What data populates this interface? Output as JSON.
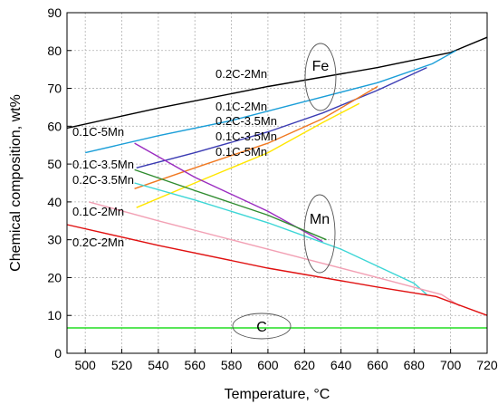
{
  "chart_data": {
    "type": "line",
    "xlabel": "Temperature, °C",
    "ylabel": "Chemical composition, wt%",
    "xlim": [
      490,
      720
    ],
    "ylim": [
      0,
      90
    ],
    "x_ticks": [
      500,
      520,
      540,
      560,
      580,
      600,
      620,
      640,
      660,
      680,
      700,
      720
    ],
    "y_ticks": [
      0,
      10,
      20,
      30,
      40,
      50,
      60,
      70,
      80,
      90
    ],
    "grid": true,
    "series": [
      {
        "name": "0.2C-2Mn",
        "group": "Fe",
        "color": "#000000",
        "x": [
          490,
          540,
          600,
          660,
          700,
          720
        ],
        "y": [
          59.5,
          64.8,
          70.5,
          75.5,
          79.5,
          83.5
        ]
      },
      {
        "name": "0.1C-2Mn",
        "group": "Fe",
        "color": "#1a9ed8",
        "x": [
          500,
          540,
          580,
          620,
          660,
          690,
          703
        ],
        "y": [
          53.0,
          57.5,
          61.5,
          66.5,
          71.5,
          76.5,
          80.0
        ]
      },
      {
        "name": "0.2C-3.5Mn",
        "group": "Fe",
        "color": "#3b3bb3",
        "x": [
          528,
          560,
          600,
          630,
          660,
          687
        ],
        "y": [
          49.0,
          53.0,
          58.5,
          63.5,
          69.5,
          75.5
        ]
      },
      {
        "name": "0.1C-3.5Mn",
        "group": "Fe",
        "color": "#f07820",
        "x": [
          527,
          560,
          600,
          630,
          660
        ],
        "y": [
          43.5,
          49.0,
          55.5,
          62.0,
          70.5
        ]
      },
      {
        "name": "0.1C-5Mn",
        "group": "Fe",
        "color": "#ffe600",
        "x": [
          528,
          560,
          600,
          630,
          650
        ],
        "y": [
          38.5,
          45.0,
          53.0,
          61.0,
          66.0
        ]
      },
      {
        "name": "0.1C-5Mn",
        "group": "Mn",
        "color": "#9a2bc0",
        "x": [
          527,
          560,
          600,
          630
        ],
        "y": [
          55.5,
          46.5,
          37.5,
          29.5
        ]
      },
      {
        "name": "0.1C-3.5Mn",
        "group": "Mn",
        "color": "#2e8b2e",
        "x": [
          527,
          560,
          600,
          632
        ],
        "y": [
          48.5,
          43.0,
          36.5,
          30.0
        ]
      },
      {
        "name": "0.2C-3.5Mn",
        "group": "Mn",
        "color": "#3cd6d6",
        "x": [
          527,
          560,
          600,
          640,
          680,
          687
        ],
        "y": [
          45.0,
          40.5,
          34.5,
          27.5,
          18.5,
          15.5
        ]
      },
      {
        "name": "0.1C-2Mn",
        "group": "Mn",
        "color": "#f2a0b4",
        "x": [
          502,
          540,
          580,
          620,
          660,
          695,
          705
        ],
        "y": [
          40.0,
          35.0,
          30.0,
          25.0,
          20.0,
          15.5,
          12.5
        ]
      },
      {
        "name": "0.2C-2Mn",
        "group": "Mn",
        "color": "#e01010",
        "x": [
          490,
          540,
          600,
          660,
          692,
          720
        ],
        "y": [
          34.0,
          28.5,
          22.5,
          17.5,
          15.0,
          10.0
        ]
      },
      {
        "name": "C",
        "group": "C",
        "color": "#22dd22",
        "x": [
          490,
          720
        ],
        "y": [
          6.7,
          6.7
        ]
      }
    ],
    "annotations": {
      "fe_label": "Fe",
      "mn_label": "Mn",
      "c_label": "C",
      "fe_0_2c_2mn": "0.2C-2Mn",
      "fe_0_1c_2mn": "0.1C-2Mn",
      "fe_0_2c_3_5mn": "0.2C-3.5Mn",
      "fe_0_1c_3_5mn": "0.1C-3.5Mn",
      "fe_0_1c_5mn": "0.1C-5Mn",
      "mn_0_1c_5mn": "0.1C-5Mn",
      "mn_0_1c_3_5mn": "0.1C-3.5Mn",
      "mn_0_2c_3_5mn": "0.2C-3.5Mn",
      "mn_0_1c_2mn": "0.1C-2Mn",
      "mn_0_2c_2mn": "0.2C-2Mn"
    }
  }
}
